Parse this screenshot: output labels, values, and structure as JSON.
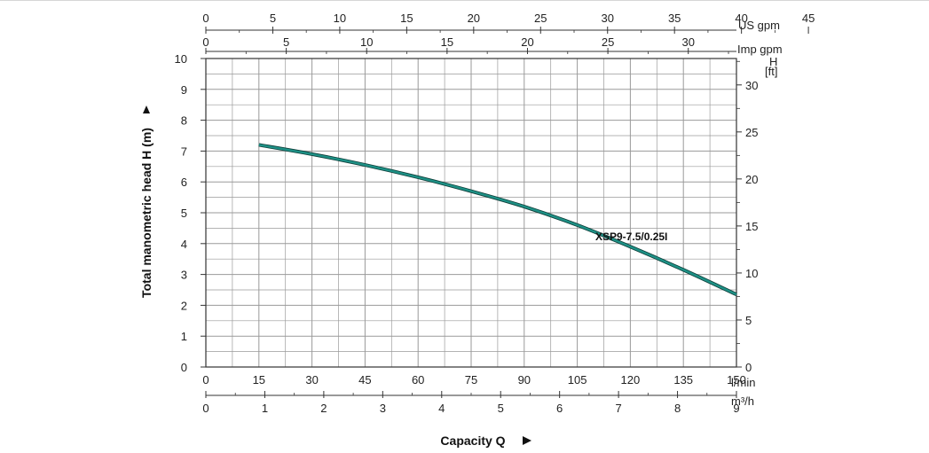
{
  "chart_data": {
    "type": "line",
    "title": "",
    "ylabel": "Total manometric head H (m)",
    "xlabel": "Capacity Q",
    "grid": true,
    "colors": {
      "series": "#1e9186",
      "grid": "#9a9a9a",
      "axis": "#333333"
    },
    "x_axis": {
      "unit": "l/min",
      "range": [
        0,
        150
      ],
      "ticks": [
        0,
        15,
        30,
        45,
        60,
        75,
        90,
        105,
        120,
        135,
        150
      ]
    },
    "y_axis": {
      "unit": "m",
      "range": [
        0,
        10
      ],
      "ticks": [
        0,
        1,
        2,
        3,
        4,
        5,
        6,
        7,
        8,
        9,
        10
      ]
    },
    "secondary_axes": {
      "us_gpm": {
        "label": "US gpm",
        "range": [
          0,
          45
        ],
        "ticks": [
          0,
          5,
          10,
          15,
          20,
          25,
          30,
          35,
          40,
          45
        ]
      },
      "imp_gpm": {
        "label": "Imp gpm",
        "ticks": [
          0,
          5,
          10,
          15,
          20,
          25,
          30
        ]
      },
      "m3h": {
        "label": "m³/h",
        "ticks": [
          0,
          1,
          2,
          3,
          4,
          5,
          6,
          7,
          8,
          9
        ]
      },
      "ft": {
        "label_top": "H",
        "label_unit": "[ft]",
        "ticks": [
          0,
          5,
          10,
          15,
          20,
          25,
          30
        ]
      }
    },
    "series": [
      {
        "name": "XSP9-7.5/0.25I",
        "x": [
          15,
          30,
          45,
          60,
          75,
          90,
          105,
          120,
          135,
          150
        ],
        "y": [
          7.2,
          6.9,
          6.55,
          6.15,
          5.7,
          5.2,
          4.6,
          3.9,
          3.15,
          2.35
        ]
      }
    ]
  }
}
